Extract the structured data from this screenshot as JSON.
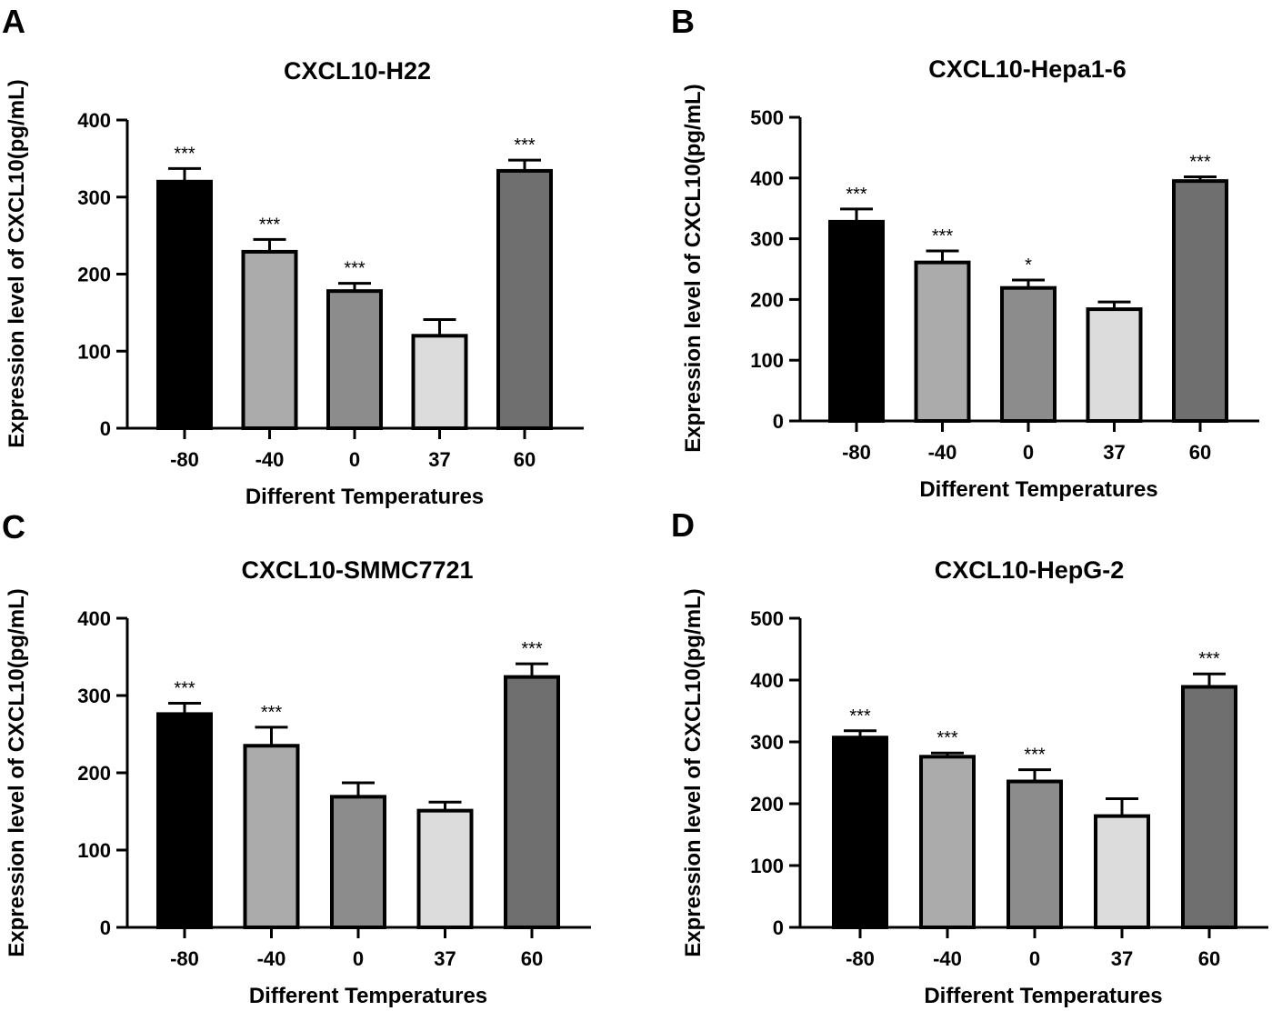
{
  "chart_data": [
    {
      "panel": "A",
      "type": "bar",
      "title": "CXCL10-H22",
      "xlabel": "Different Temperatures",
      "ylabel": "Expression level of CXCL10(pg/mL)",
      "ylim": [
        0,
        400
      ],
      "yticks": [
        0,
        100,
        200,
        300,
        400
      ],
      "categories": [
        "-80",
        "-40",
        "0",
        "37",
        "60"
      ],
      "values": [
        320,
        229,
        178,
        120,
        334
      ],
      "errors": [
        17,
        16,
        10,
        21,
        14
      ],
      "significance": [
        "***",
        "***",
        "***",
        "",
        "***"
      ],
      "bar_colors": [
        "#000000",
        "#ababab",
        "#8c8c8c",
        "#dcdcdc",
        "#6f6f6f"
      ]
    },
    {
      "panel": "B",
      "type": "bar",
      "title": "CXCL10-Hepa1-6",
      "xlabel": "Different Temperatures",
      "ylabel": "Expression level of CXCL10(pg/mL)",
      "ylim": [
        0,
        500
      ],
      "yticks": [
        0,
        100,
        200,
        300,
        400,
        500
      ],
      "categories": [
        "-80",
        "-40",
        "0",
        "37",
        "60"
      ],
      "values": [
        328,
        261,
        219,
        184,
        395
      ],
      "errors": [
        21,
        19,
        13,
        12,
        7
      ],
      "significance": [
        "***",
        "***",
        "*",
        "",
        "***"
      ],
      "bar_colors": [
        "#000000",
        "#ababab",
        "#8c8c8c",
        "#dcdcdc",
        "#6f6f6f"
      ]
    },
    {
      "panel": "C",
      "type": "bar",
      "title": "CXCL10-SMMC7721",
      "xlabel": "Different Temperatures",
      "ylabel": "Expression level of CXCL10(pg/mL)",
      "ylim": [
        0,
        400
      ],
      "yticks": [
        0,
        100,
        200,
        300,
        400
      ],
      "categories": [
        "-80",
        "-40",
        "0",
        "37",
        "60"
      ],
      "values": [
        276,
        235,
        169,
        151,
        324
      ],
      "errors": [
        14,
        24,
        18,
        11,
        17
      ],
      "significance": [
        "***",
        "***",
        "",
        "",
        "***"
      ],
      "bar_colors": [
        "#000000",
        "#ababab",
        "#8c8c8c",
        "#dcdcdc",
        "#6f6f6f"
      ]
    },
    {
      "panel": "D",
      "type": "bar",
      "title": "CXCL10-HepG-2",
      "xlabel": "Different Temperatures",
      "ylabel": "Expression level of CXCL10(pg/mL)",
      "ylim": [
        0,
        500
      ],
      "yticks": [
        0,
        100,
        200,
        300,
        400,
        500
      ],
      "categories": [
        "-80",
        "-40",
        "0",
        "37",
        "60"
      ],
      "values": [
        307,
        276,
        236,
        180,
        389
      ],
      "errors": [
        11,
        6,
        19,
        28,
        21
      ],
      "significance": [
        "***",
        "***",
        "***",
        "",
        "***"
      ],
      "bar_colors": [
        "#000000",
        "#ababab",
        "#8c8c8c",
        "#dcdcdc",
        "#6f6f6f"
      ]
    }
  ]
}
